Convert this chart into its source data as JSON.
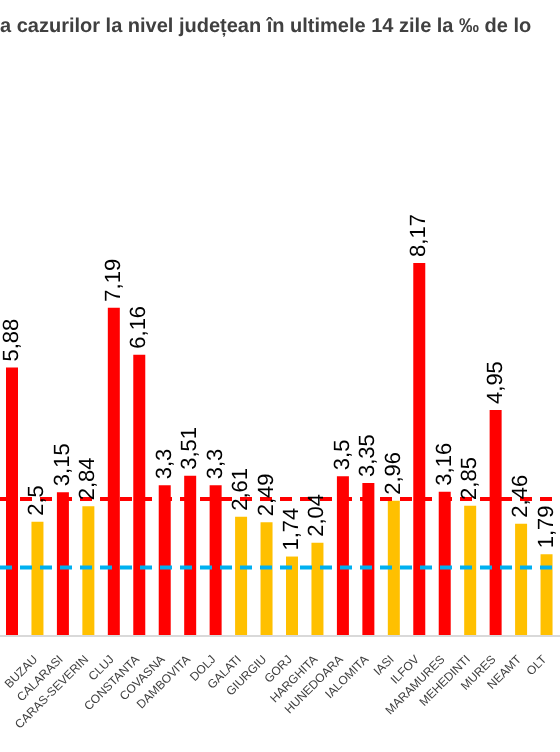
{
  "chart_data": {
    "type": "bar",
    "title": "a cazurilor la nivel județean în ultimele 14 zile la ‰ de lo",
    "categories": [
      null,
      "BUZAU",
      "CALARASI",
      "CARAS-SEVERIN",
      "CLUJ",
      "CONSTANTA",
      "COVASNA",
      "DAMBOVITA",
      "DOLJ",
      "GALATI",
      "GIURGIU",
      "GORJ",
      "HARGHITA",
      "HUNEDOARA",
      "IALOMITA",
      "IASI",
      "ILFOV",
      "MARAMURES",
      "MEHEDINTI",
      "MURES",
      "NEAMT",
      "OLT"
    ],
    "values": [
      5.88,
      2.5,
      3.15,
      2.84,
      7.19,
      6.16,
      3.3,
      3.51,
      3.3,
      2.61,
      2.49,
      1.74,
      2.04,
      3.5,
      3.35,
      2.96,
      8.17,
      3.16,
      2.85,
      4.95,
      2.46,
      1.79
    ],
    "colors": [
      "#ff0000",
      "#ffc000",
      "#ff0000",
      "#ffc000",
      "#ff0000",
      "#ff0000",
      "#ff0000",
      "#ff0000",
      "#ff0000",
      "#ffc000",
      "#ffc000",
      "#ffc000",
      "#ffc000",
      "#ff0000",
      "#ff0000",
      "#ffc000",
      "#ff0000",
      "#ff0000",
      "#ffc000",
      "#ff0000",
      "#ffc000",
      "#ffc000"
    ],
    "value_labels": [
      "5,88",
      "2,5",
      "3,15",
      "2,84",
      "7,19",
      "6,16",
      "3,3",
      "3,51",
      "3,3",
      "2,61",
      "2,49",
      "1,74",
      "2,04",
      "3,5",
      "3,35",
      "2,96",
      "8,17",
      "3,16",
      "2,85",
      "4,95",
      "2,46",
      "1,79"
    ],
    "tick_labels": "x",
    "grid": false,
    "ref_lines": [
      {
        "axis": "y",
        "value": 3,
        "color": "#ff0000",
        "line_style": "dashed"
      },
      {
        "axis": "y",
        "value": 1.5,
        "color": "#00b0f0",
        "line_style": "dashed"
      }
    ]
  }
}
